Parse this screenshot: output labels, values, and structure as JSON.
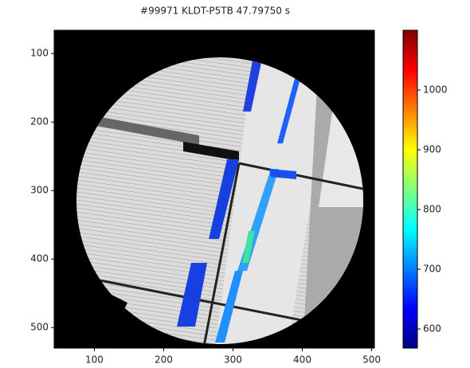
{
  "chart_data": {
    "type": "heatmap",
    "title": "#99971 KLDT-P5TB 47.79750 s",
    "xlim": [
      42,
      504
    ],
    "xticks": [
      100,
      200,
      300,
      400,
      500
    ],
    "ylim": [
      530,
      66
    ],
    "yticks": [
      100,
      200,
      300,
      400,
      500
    ],
    "colorbar": {
      "colormap": "jet",
      "clim": [
        568,
        1100
      ],
      "ticks": [
        600,
        700,
        800,
        900,
        1000
      ]
    }
  }
}
